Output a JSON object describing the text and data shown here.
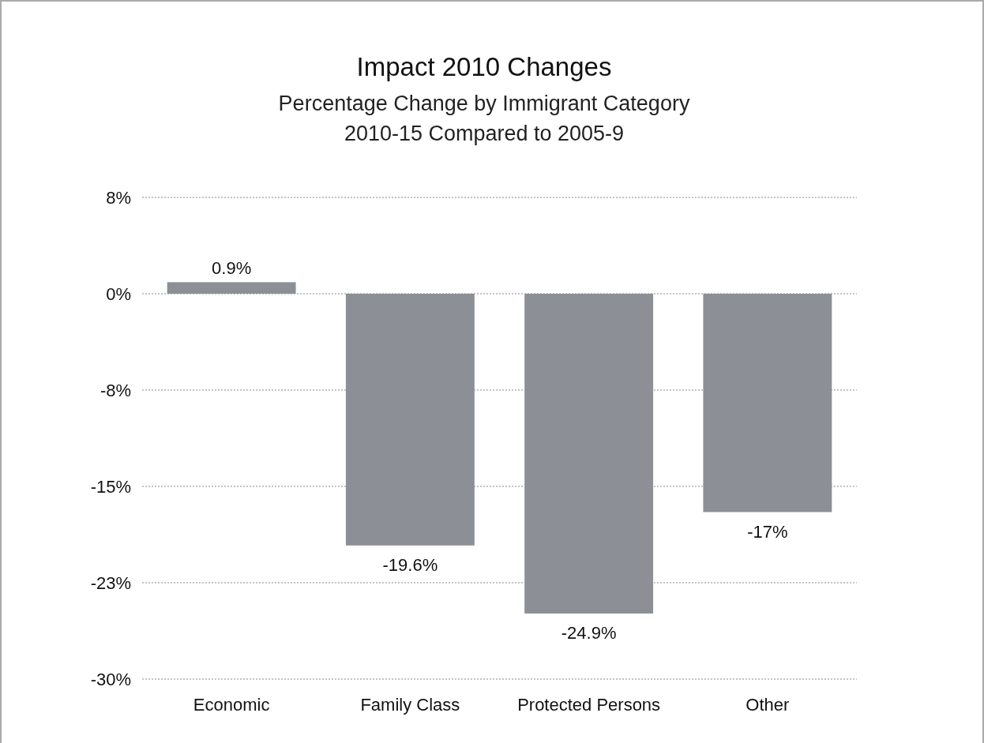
{
  "chart_data": {
    "type": "bar",
    "title": "Impact 2010 Changes",
    "subtitle": "Percentage Change by Immigrant Category\n2010-15 Compared to 2005-9",
    "categories": [
      "Economic",
      "Family Class",
      "Protected Persons",
      "Other"
    ],
    "values": [
      0.9,
      -19.6,
      -24.9,
      -17
    ],
    "color": "#8c9096",
    "value_labels": [
      "0.9%",
      "-19.6%",
      "-24.9%",
      "-17%"
    ],
    "ylim": [
      -30,
      7.5
    ],
    "yticks": [
      {
        "value": 7.5,
        "label": "8%"
      },
      {
        "value": 0,
        "label": "0%"
      },
      {
        "value": -7.5,
        "label": "-8%"
      },
      {
        "value": -15,
        "label": "-15%"
      },
      {
        "value": -22.5,
        "label": "-23%"
      },
      {
        "value": -30,
        "label": "-30%"
      }
    ],
    "grid": "y"
  }
}
